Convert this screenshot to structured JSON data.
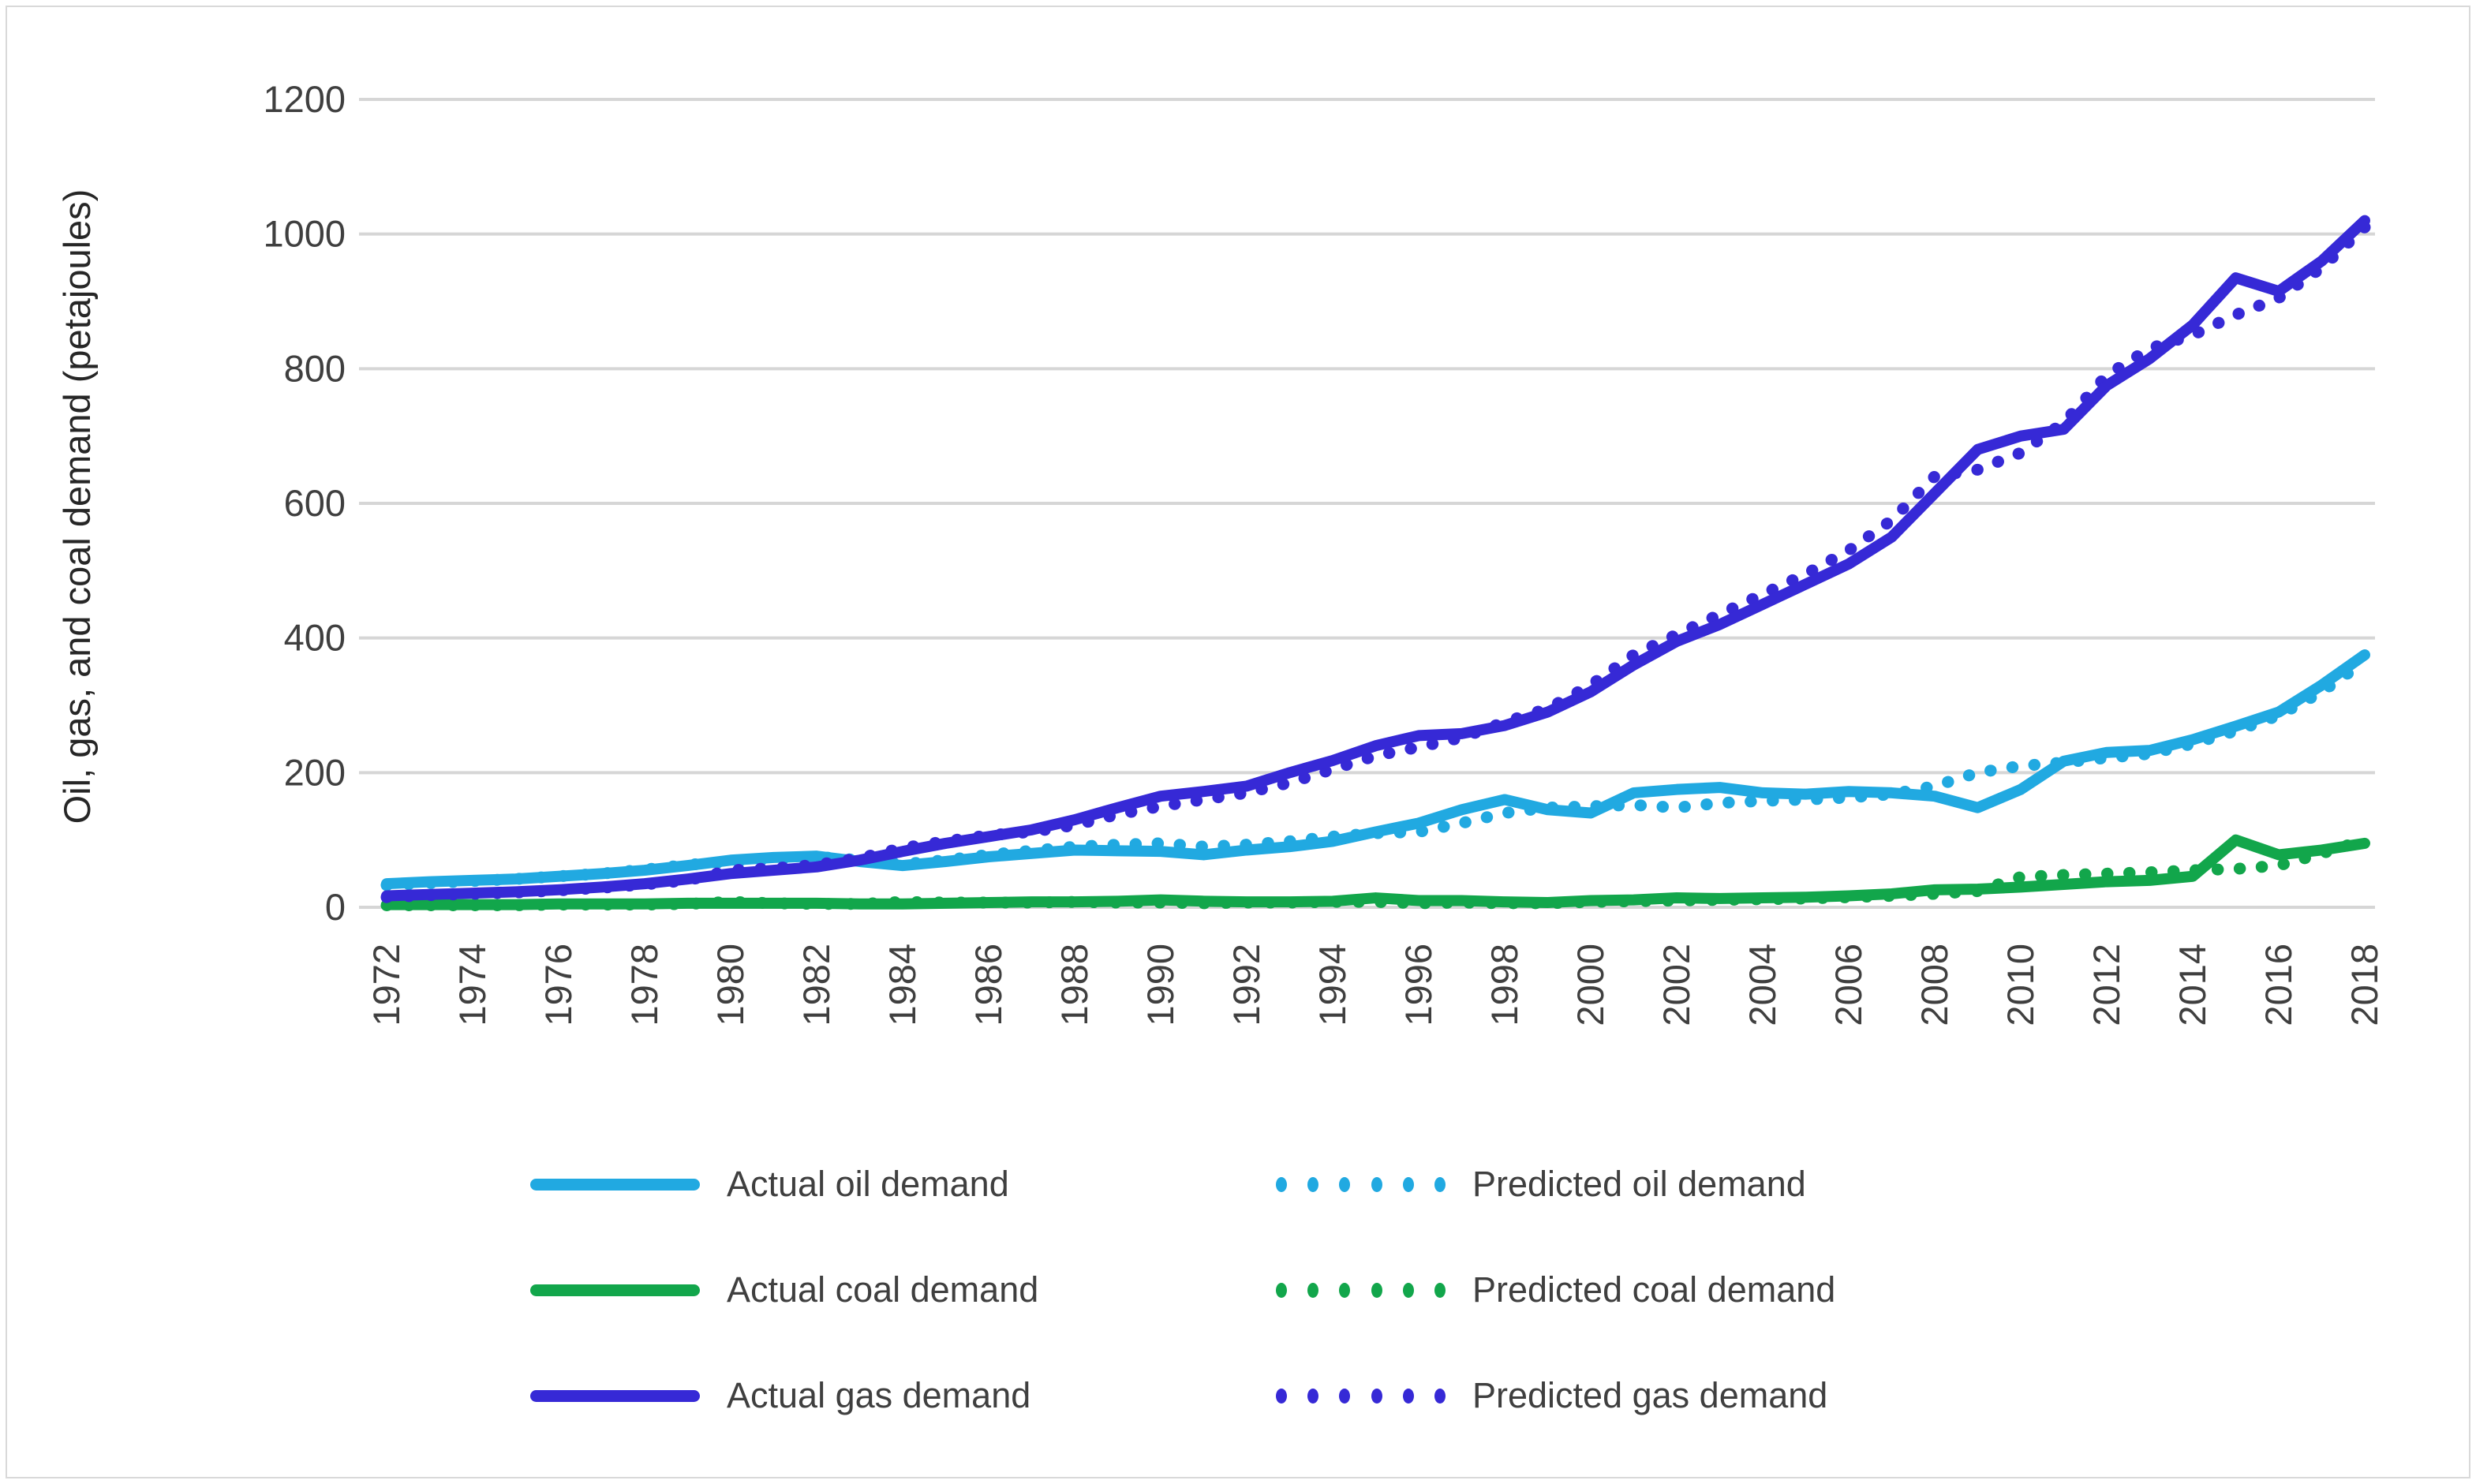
{
  "figure": {
    "background": "#FFFFFF",
    "border_color": "#D9D9D9",
    "gridline_color": "#D6D6D6",
    "text_color": "#3F3F3F"
  },
  "chart_data": {
    "type": "line",
    "title": "",
    "xlabel": "",
    "ylabel": "Oil, gas, and coal demand (petajoules)",
    "ylim": [
      0,
      1200
    ],
    "yticks": [
      0,
      200,
      400,
      600,
      800,
      1000,
      1200
    ],
    "xticks": [
      1972,
      1974,
      1976,
      1978,
      1980,
      1982,
      1984,
      1986,
      1988,
      1990,
      1992,
      1994,
      1996,
      1998,
      2000,
      2002,
      2004,
      2006,
      2008,
      2010,
      2012,
      2014,
      2016,
      2018
    ],
    "grid": "horizontal",
    "legend_position": "bottom",
    "x": [
      1972,
      1973,
      1974,
      1975,
      1976,
      1977,
      1978,
      1979,
      1980,
      1981,
      1982,
      1983,
      1984,
      1985,
      1986,
      1987,
      1988,
      1989,
      1990,
      1991,
      1992,
      1993,
      1994,
      1995,
      1996,
      1997,
      1998,
      1999,
      2000,
      2001,
      2002,
      2003,
      2004,
      2005,
      2006,
      2007,
      2008,
      2009,
      2010,
      2011,
      2012,
      2013,
      2014,
      2015,
      2016,
      2017,
      2018
    ],
    "series": [
      {
        "name": "Actual oil demand",
        "color": "#21A9E1",
        "style": "solid",
        "values": [
          35,
          38,
          40,
          42,
          46,
          50,
          55,
          62,
          70,
          74,
          76,
          68,
          62,
          68,
          75,
          80,
          85,
          84,
          83,
          78,
          85,
          90,
          98,
          112,
          125,
          145,
          160,
          145,
          140,
          170,
          175,
          178,
          170,
          168,
          172,
          170,
          165,
          148,
          175,
          217,
          230,
          233,
          249,
          269,
          290,
          330,
          375
        ]
      },
      {
        "name": "Predicted oil demand",
        "color": "#21A9E1",
        "style": "dotted",
        "values": [
          33,
          36,
          39,
          42,
          46,
          50,
          56,
          63,
          68,
          72,
          75,
          70,
          64,
          70,
          78,
          84,
          90,
          93,
          95,
          90,
          93,
          98,
          105,
          110,
          112,
          125,
          140,
          148,
          150,
          152,
          148,
          155,
          158,
          160,
          163,
          168,
          180,
          200,
          210,
          215,
          222,
          228,
          243,
          262,
          285,
          320,
          365
        ]
      },
      {
        "name": "Actual coal demand",
        "color": "#12A64B",
        "style": "solid",
        "values": [
          4,
          4,
          4,
          4,
          5,
          5,
          5,
          6,
          6,
          6,
          6,
          5,
          5,
          6,
          7,
          8,
          8,
          9,
          11,
          9,
          8,
          8,
          9,
          14,
          10,
          10,
          8,
          7,
          10,
          11,
          14,
          13,
          14,
          15,
          17,
          20,
          26,
          27,
          30,
          34,
          38,
          40,
          46,
          100,
          78,
          85,
          95
        ]
      },
      {
        "name": "Predicted coal demand",
        "color": "#12A64B",
        "style": "dotted",
        "values": [
          3,
          3,
          3,
          3,
          4,
          4,
          4,
          5,
          8,
          6,
          5,
          5,
          8,
          7,
          7,
          7,
          8,
          7,
          7,
          6,
          7,
          7,
          8,
          8,
          6,
          7,
          6,
          6,
          8,
          9,
          10,
          11,
          12,
          13,
          15,
          17,
          20,
          24,
          45,
          48,
          50,
          52,
          55,
          57,
          62,
          80,
          100
        ]
      },
      {
        "name": "Actual gas demand",
        "color": "#3629D6",
        "style": "solid",
        "values": [
          17,
          19,
          21,
          23,
          26,
          30,
          35,
          42,
          50,
          55,
          60,
          70,
          83,
          95,
          105,
          115,
          130,
          148,
          165,
          172,
          180,
          200,
          218,
          240,
          255,
          258,
          270,
          290,
          320,
          360,
          395,
          420,
          450,
          480,
          510,
          550,
          615,
          680,
          700,
          710,
          775,
          815,
          865,
          935,
          915,
          960,
          1020
        ]
      },
      {
        "name": "Predicted gas demand",
        "color": "#3629D6",
        "style": "dotted",
        "values": [
          15,
          18,
          20,
          22,
          25,
          29,
          34,
          40,
          55,
          58,
          63,
          73,
          88,
          98,
          107,
          112,
          122,
          138,
          150,
          160,
          170,
          185,
          205,
          225,
          238,
          252,
          275,
          295,
          330,
          375,
          405,
          435,
          465,
          495,
          530,
          575,
          640,
          650,
          675,
          720,
          790,
          830,
          850,
          880,
          905,
          950,
          1010
        ]
      }
    ]
  }
}
